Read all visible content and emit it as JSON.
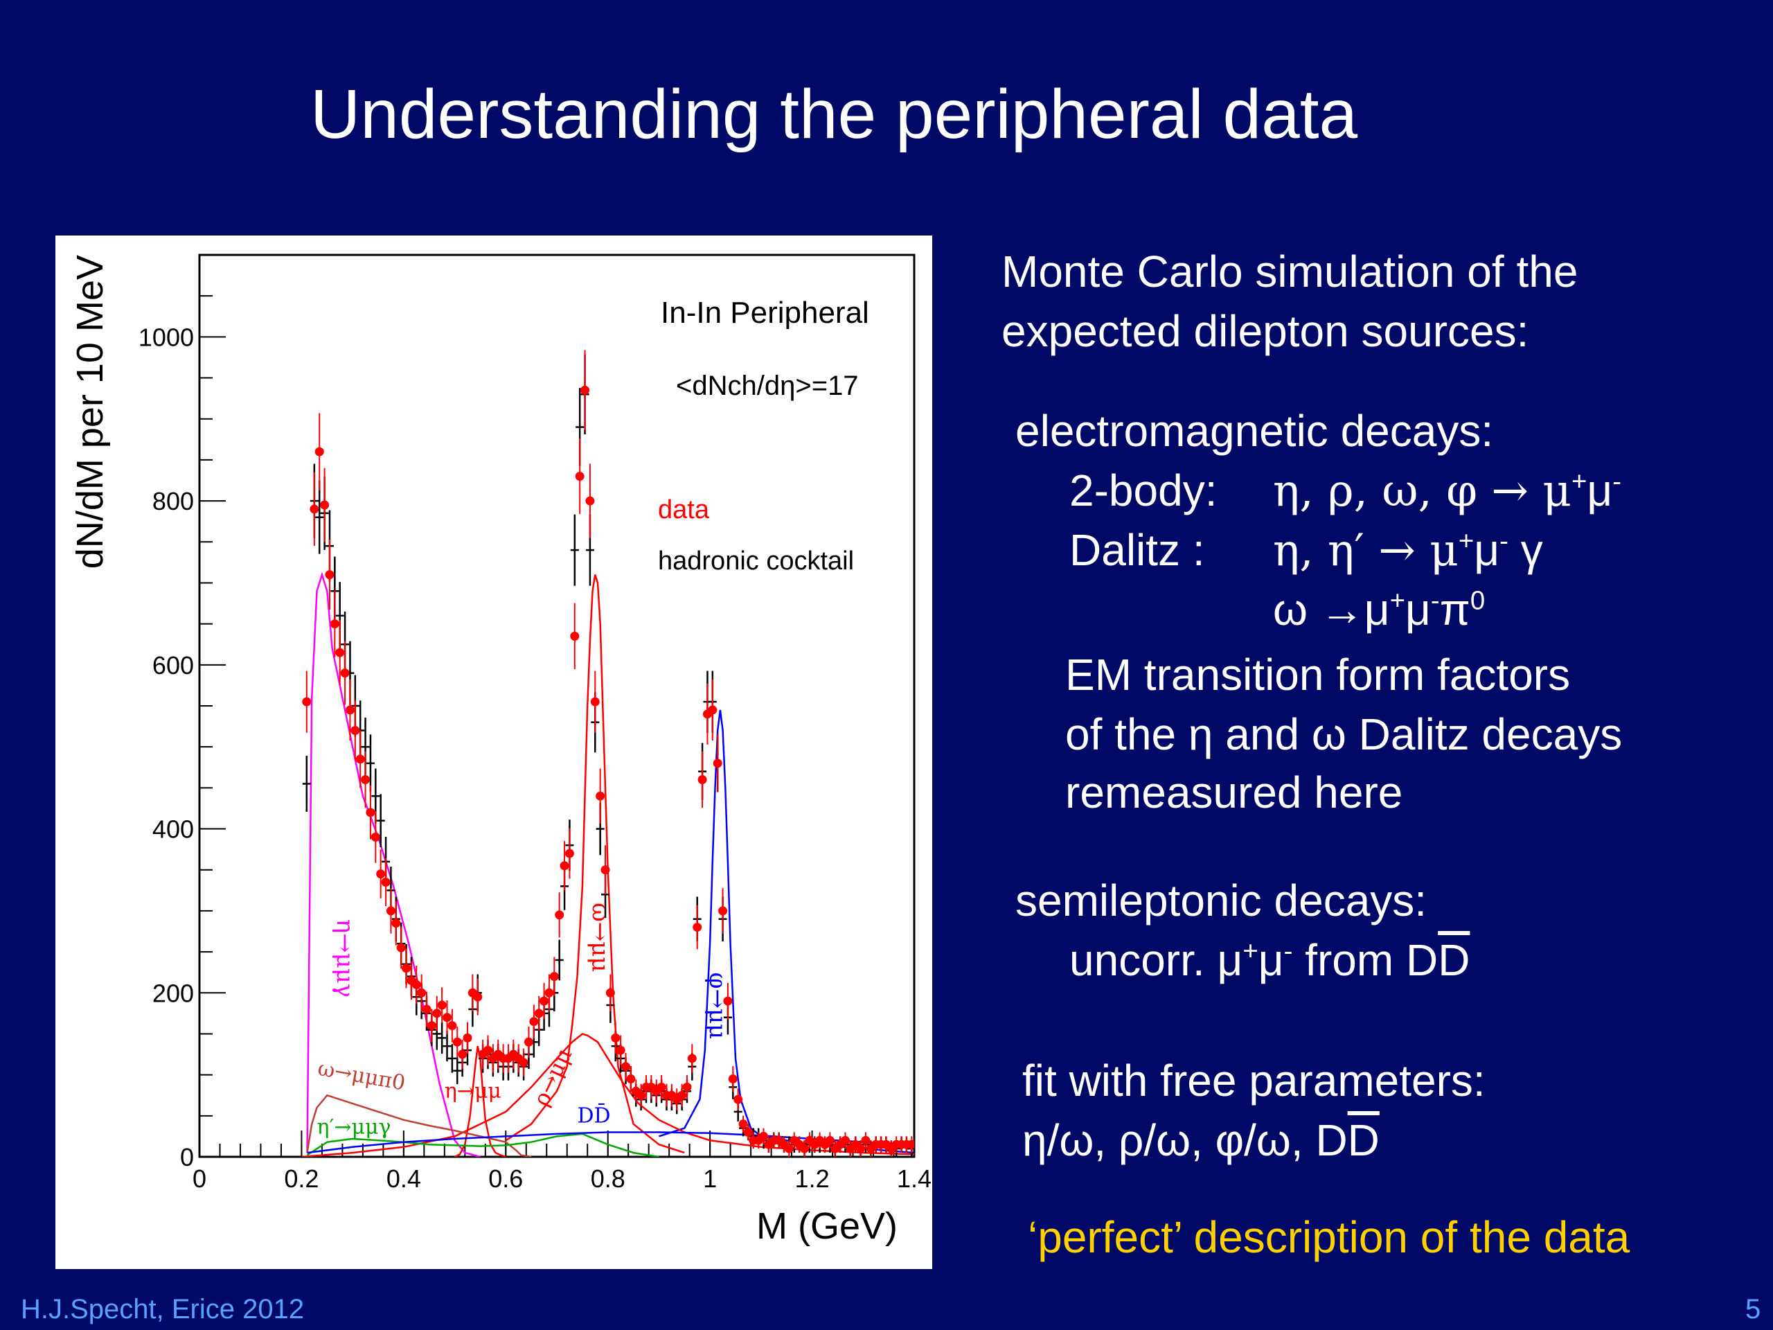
{
  "slide": {
    "title": "Understanding the peripheral data",
    "footer": "H.J.Specht, Erice 2012",
    "page_number": "5"
  },
  "text": {
    "intro_line1": "Monte Carlo simulation of the",
    "intro_line2": "expected  dilepton sources:",
    "em_heading": "electromagnetic decays:",
    "two_body_label": "2-body:",
    "two_body_decays": "η, ρ, ω, φ → μ",
    "dalitz_label": "Dalitz :",
    "dalitz_decays": "η, η′ → μ",
    "dalitz_omega": "ω →μ",
    "ff_line1": "EM transition form factors",
    "ff_line2": "of the η and ω Dalitz decays",
    "ff_line3": "remeasured here",
    "semi_heading": "semileptonic decays:",
    "semi_line_a": "uncorr.  μ",
    "semi_line_b": " from  D",
    "semi_dbar": "D",
    "fit_heading": "fit with free parameters:",
    "fit_params": "η/ω, ρ/ω, φ/ω, D",
    "fit_dbar": "D",
    "conclusion": "‘perfect’ description of the data"
  },
  "chart_data": {
    "type": "line",
    "title": "",
    "xlabel": "M (GeV)",
    "ylabel": "dN/dM per 10 MeV",
    "xlim": [
      0,
      1.4
    ],
    "ylim": [
      0,
      1100
    ],
    "x_ticks": [
      0,
      0.2,
      0.4,
      0.6,
      0.8,
      1,
      1.2,
      1.4
    ],
    "x_tick_labels": [
      "0",
      "0.2",
      "0.4",
      "0.6",
      "0.8",
      "1",
      "1.2",
      "1.4"
    ],
    "y_ticks": [
      0,
      200,
      400,
      600,
      800,
      1000
    ],
    "y_tick_labels": [
      "0",
      "200",
      "400",
      "600",
      "800",
      "1000"
    ],
    "legend": {
      "system": "In-In Peripheral",
      "multiplicity": "<dNch/dη>=17",
      "entries": [
        {
          "label": "data",
          "color": "#ff0000"
        },
        {
          "label": "hadronic cocktail",
          "color": "#000000"
        }
      ]
    },
    "series": [
      {
        "name": "data",
        "color": "#ff0000",
        "x": [
          0.21,
          0.225,
          0.235,
          0.245,
          0.255,
          0.265,
          0.275,
          0.285,
          0.295,
          0.305,
          0.315,
          0.325,
          0.335,
          0.345,
          0.355,
          0.365,
          0.375,
          0.385,
          0.395,
          0.405,
          0.415,
          0.425,
          0.435,
          0.445,
          0.455,
          0.465,
          0.475,
          0.485,
          0.495,
          0.505,
          0.515,
          0.525,
          0.535,
          0.545,
          0.555,
          0.565,
          0.575,
          0.585,
          0.595,
          0.605,
          0.615,
          0.625,
          0.635,
          0.645,
          0.655,
          0.665,
          0.675,
          0.685,
          0.695,
          0.705,
          0.715,
          0.725,
          0.735,
          0.745,
          0.755,
          0.765,
          0.775,
          0.785,
          0.795,
          0.805,
          0.815,
          0.825,
          0.835,
          0.845,
          0.855,
          0.865,
          0.875,
          0.885,
          0.895,
          0.905,
          0.915,
          0.925,
          0.935,
          0.945,
          0.955,
          0.965,
          0.975,
          0.985,
          0.995,
          1.005,
          1.015,
          1.025,
          1.035,
          1.045,
          1.055,
          1.065,
          1.075,
          1.085,
          1.095,
          1.105,
          1.115,
          1.125,
          1.135,
          1.145,
          1.155,
          1.165,
          1.175,
          1.185,
          1.195,
          1.205,
          1.215,
          1.225,
          1.235,
          1.245,
          1.255,
          1.265,
          1.275,
          1.285,
          1.295,
          1.305,
          1.315,
          1.325,
          1.335,
          1.345,
          1.355,
          1.365,
          1.375,
          1.385,
          1.395
        ],
        "y": [
          555,
          790,
          860,
          795,
          710,
          650,
          615,
          590,
          545,
          520,
          485,
          460,
          420,
          390,
          345,
          335,
          300,
          285,
          255,
          230,
          215,
          210,
          200,
          180,
          160,
          175,
          185,
          170,
          160,
          140,
          125,
          145,
          200,
          195,
          125,
          130,
          120,
          125,
          120,
          120,
          125,
          120,
          115,
          140,
          165,
          175,
          190,
          200,
          220,
          295,
          355,
          370,
          635,
          830,
          935,
          800,
          555,
          440,
          350,
          200,
          145,
          130,
          110,
          95,
          80,
          75,
          85,
          85,
          80,
          85,
          75,
          75,
          70,
          75,
          85,
          120,
          280,
          460,
          540,
          545,
          480,
          300,
          190,
          95,
          70,
          40,
          30,
          20,
          20,
          25,
          15,
          20,
          20,
          15,
          10,
          20,
          15,
          10,
          20,
          15,
          20,
          15,
          20,
          10,
          15,
          20,
          10,
          15,
          10,
          20,
          10,
          15,
          15,
          15,
          10,
          15,
          15,
          15,
          15
        ]
      },
      {
        "name": "η→μμγ",
        "color": "#ff00ff",
        "x": [
          0.211,
          0.22,
          0.23,
          0.24,
          0.25,
          0.26,
          0.28,
          0.3,
          0.32,
          0.35,
          0.38,
          0.41,
          0.44,
          0.47,
          0.5,
          0.52,
          0.55
        ],
        "y": [
          5,
          560,
          690,
          710,
          690,
          620,
          560,
          500,
          440,
          390,
          330,
          260,
          180,
          90,
          20,
          5,
          0
        ]
      },
      {
        "name": "ω→μμ",
        "color": "#ff0000",
        "x": [
          0.6,
          0.65,
          0.7,
          0.72,
          0.73,
          0.74,
          0.75,
          0.755,
          0.76,
          0.765,
          0.77,
          0.775,
          0.78,
          0.785,
          0.79,
          0.8,
          0.81,
          0.82,
          0.85,
          0.9,
          0.95
        ],
        "y": [
          20,
          40,
          80,
          110,
          160,
          220,
          330,
          440,
          550,
          630,
          690,
          710,
          700,
          650,
          550,
          350,
          200,
          110,
          40,
          15,
          5
        ]
      },
      {
        "name": "φ→μμ",
        "color": "#0000ff",
        "x": [
          0.9,
          0.95,
          0.98,
          0.99,
          1.0,
          1.005,
          1.01,
          1.015,
          1.02,
          1.025,
          1.03,
          1.035,
          1.04,
          1.05,
          1.06,
          1.08,
          1.1,
          1.15,
          1.2,
          1.3,
          1.4
        ],
        "y": [
          25,
          35,
          70,
          130,
          260,
          360,
          450,
          520,
          545,
          520,
          450,
          360,
          260,
          120,
          70,
          35,
          25,
          20,
          15,
          10,
          5
        ]
      },
      {
        "name": "ρ→μμ",
        "color": "#ff0000",
        "x": [
          0.2,
          0.3,
          0.4,
          0.5,
          0.55,
          0.6,
          0.65,
          0.7,
          0.73,
          0.75,
          0.76,
          0.78,
          0.8,
          0.83,
          0.86,
          0.9,
          0.95,
          1.0,
          1.1,
          1.2,
          1.3,
          1.4
        ],
        "y": [
          0,
          5,
          12,
          25,
          40,
          55,
          85,
          120,
          140,
          150,
          148,
          140,
          120,
          90,
          65,
          45,
          30,
          20,
          12,
          8,
          5,
          3
        ]
      },
      {
        "name": "η→μμ",
        "color": "#ff0000",
        "x": [
          0.5,
          0.51,
          0.52,
          0.53,
          0.54,
          0.545,
          0.55,
          0.555,
          0.56,
          0.57,
          0.58,
          0.59,
          0.6
        ],
        "y": [
          0,
          3,
          15,
          50,
          110,
          135,
          120,
          80,
          45,
          15,
          5,
          2,
          0
        ]
      },
      {
        "name": "ω→μμπ0",
        "color": "#c04030",
        "x": [
          0.211,
          0.22,
          0.23,
          0.25,
          0.3,
          0.35,
          0.4,
          0.45,
          0.5,
          0.55,
          0.6,
          0.62,
          0.63,
          0.65
        ],
        "y": [
          5,
          40,
          60,
          75,
          65,
          55,
          45,
          38,
          32,
          25,
          18,
          8,
          2,
          0
        ]
      },
      {
        "name": "η′→μμγ",
        "color": "#00aa00",
        "x": [
          0.211,
          0.25,
          0.3,
          0.35,
          0.4,
          0.45,
          0.5,
          0.55,
          0.6,
          0.65,
          0.7,
          0.75,
          0.8,
          0.85,
          0.9
        ],
        "y": [
          2,
          18,
          22,
          20,
          18,
          15,
          14,
          13,
          14,
          18,
          25,
          28,
          15,
          5,
          0
        ]
      },
      {
        "name": "DD̄",
        "color": "#0000ff",
        "x": [
          0.211,
          0.3,
          0.4,
          0.5,
          0.6,
          0.7,
          0.8,
          0.9,
          1.0,
          1.1,
          1.2,
          1.3,
          1.4
        ],
        "y": [
          5,
          12,
          18,
          22,
          25,
          28,
          30,
          30,
          29,
          26,
          22,
          18,
          14
        ]
      },
      {
        "name": "hadronic cocktail",
        "color": "#000000",
        "x": [
          0.21,
          0.225,
          0.235,
          0.245,
          0.255,
          0.265,
          0.275,
          0.285,
          0.295,
          0.305,
          0.315,
          0.325,
          0.335,
          0.345,
          0.355,
          0.365,
          0.375,
          0.385,
          0.395,
          0.405,
          0.415,
          0.425,
          0.435,
          0.445,
          0.455,
          0.465,
          0.475,
          0.485,
          0.495,
          0.505,
          0.515,
          0.525,
          0.535,
          0.545,
          0.555,
          0.565,
          0.575,
          0.585,
          0.595,
          0.605,
          0.615,
          0.625,
          0.635,
          0.645,
          0.655,
          0.665,
          0.675,
          0.685,
          0.695,
          0.705,
          0.715,
          0.725,
          0.735,
          0.745,
          0.755,
          0.765,
          0.775,
          0.785,
          0.795,
          0.805,
          0.815,
          0.825,
          0.835,
          0.845,
          0.855,
          0.865,
          0.875,
          0.885,
          0.895,
          0.905,
          0.915,
          0.925,
          0.935,
          0.945,
          0.955,
          0.965,
          0.975,
          0.985,
          0.995,
          1.005,
          1.015,
          1.025,
          1.035,
          1.045,
          1.055,
          1.065,
          1.075,
          1.085,
          1.095,
          1.105,
          1.115,
          1.125,
          1.135,
          1.145,
          1.155,
          1.165,
          1.175,
          1.185,
          1.195,
          1.205,
          1.215,
          1.225,
          1.235,
          1.245,
          1.255,
          1.265,
          1.275,
          1.285,
          1.295,
          1.305,
          1.315,
          1.325,
          1.335,
          1.345,
          1.355,
          1.365,
          1.375,
          1.385,
          1.395
        ],
        "y": [
          455,
          800,
          780,
          785,
          745,
          690,
          660,
          625,
          590,
          550,
          520,
          500,
          480,
          440,
          410,
          360,
          325,
          290,
          260,
          235,
          220,
          195,
          190,
          175,
          155,
          150,
          145,
          135,
          120,
          105,
          115,
          130,
          180,
          200,
          120,
          125,
          115,
          120,
          110,
          110,
          120,
          115,
          110,
          125,
          140,
          155,
          175,
          180,
          200,
          240,
          330,
          380,
          740,
          890,
          930,
          740,
          530,
          400,
          320,
          185,
          135,
          120,
          105,
          95,
          75,
          70,
          80,
          80,
          75,
          80,
          70,
          70,
          65,
          70,
          80,
          110,
          290,
          470,
          555,
          555,
          480,
          290,
          170,
          85,
          55,
          35,
          30,
          25,
          25,
          20,
          15,
          20,
          20,
          15,
          15,
          15,
          15,
          10,
          15,
          15,
          15,
          15,
          15,
          10,
          15,
          15,
          10,
          15,
          10,
          15,
          10,
          15,
          15,
          15,
          10,
          10,
          15,
          15,
          10
        ]
      }
    ],
    "annotations": [
      "η→μμγ",
      "ω→μμ",
      "φ→μμ",
      "ρ→μμ",
      "η→μμ",
      "ω→μμπ0",
      "η′→μμγ",
      "DD̄"
    ]
  }
}
